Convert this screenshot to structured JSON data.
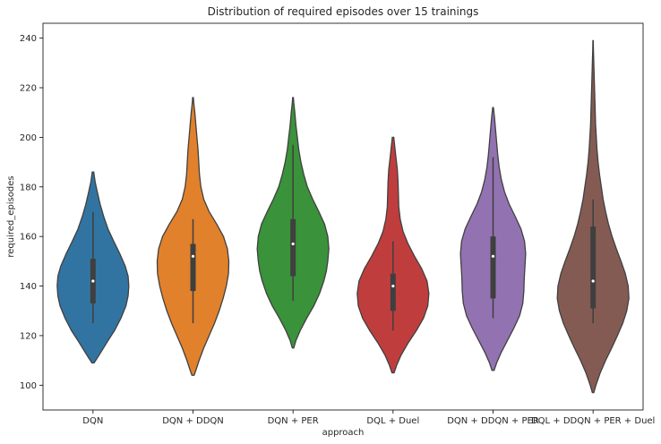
{
  "chart_data": {
    "type": "violin",
    "title": "Distribution of required episodes over 15 trainings",
    "xlabel": "approach",
    "ylabel": "required_episodes",
    "ylim": [
      90,
      246
    ],
    "yticks": [
      100,
      120,
      140,
      160,
      180,
      200,
      220,
      240
    ],
    "grid": false,
    "categories": [
      "DQN",
      "DQN + DDQN",
      "DQN + PER",
      "DQL + Duel",
      "DQN + DDQN + PER",
      "DQL + DDQN + PER + Duel"
    ],
    "series": [
      {
        "category": "DQN",
        "color": "#3274a1",
        "min": 125,
        "q1": 133,
        "median": 142,
        "q3": 151,
        "max": 170,
        "kde_min": 109,
        "kde_max": 186,
        "density": [
          [
            109,
            0.03
          ],
          [
            111,
            0.12
          ],
          [
            114,
            0.25
          ],
          [
            118,
            0.42
          ],
          [
            122,
            0.6
          ],
          [
            127,
            0.78
          ],
          [
            132,
            0.92
          ],
          [
            136,
            0.98
          ],
          [
            140,
            1.0
          ],
          [
            144,
            0.98
          ],
          [
            148,
            0.9
          ],
          [
            153,
            0.75
          ],
          [
            158,
            0.58
          ],
          [
            163,
            0.42
          ],
          [
            168,
            0.3
          ],
          [
            173,
            0.2
          ],
          [
            178,
            0.12
          ],
          [
            182,
            0.06
          ],
          [
            186,
            0.02
          ]
        ]
      },
      {
        "category": "DQN + DDQN",
        "color": "#e1812c",
        "min": 125,
        "q1": 138,
        "median": 152,
        "q3": 157,
        "max": 167,
        "kde_min": 104,
        "kde_max": 216,
        "density": [
          [
            104,
            0.03
          ],
          [
            106,
            0.08
          ],
          [
            110,
            0.17
          ],
          [
            115,
            0.3
          ],
          [
            120,
            0.45
          ],
          [
            125,
            0.6
          ],
          [
            130,
            0.73
          ],
          [
            135,
            0.84
          ],
          [
            140,
            0.93
          ],
          [
            145,
            0.99
          ],
          [
            150,
            1.0
          ],
          [
            155,
            0.96
          ],
          [
            160,
            0.85
          ],
          [
            165,
            0.66
          ],
          [
            170,
            0.45
          ],
          [
            175,
            0.3
          ],
          [
            180,
            0.22
          ],
          [
            185,
            0.18
          ],
          [
            190,
            0.16
          ],
          [
            195,
            0.14
          ],
          [
            200,
            0.11
          ],
          [
            205,
            0.08
          ],
          [
            210,
            0.05
          ],
          [
            214,
            0.02
          ],
          [
            216,
            0.01
          ]
        ]
      },
      {
        "category": "DQN + PER",
        "color": "#3a923a",
        "min": 134,
        "q1": 144,
        "median": 157,
        "q3": 167,
        "max": 197,
        "kde_min": 115,
        "kde_max": 216,
        "density": [
          [
            115,
            0.02
          ],
          [
            118,
            0.08
          ],
          [
            122,
            0.2
          ],
          [
            127,
            0.38
          ],
          [
            132,
            0.58
          ],
          [
            137,
            0.74
          ],
          [
            142,
            0.86
          ],
          [
            146,
            0.93
          ],
          [
            150,
            0.97
          ],
          [
            155,
            1.0
          ],
          [
            160,
            0.97
          ],
          [
            165,
            0.88
          ],
          [
            170,
            0.72
          ],
          [
            175,
            0.55
          ],
          [
            180,
            0.4
          ],
          [
            185,
            0.3
          ],
          [
            190,
            0.22
          ],
          [
            195,
            0.16
          ],
          [
            200,
            0.12
          ],
          [
            205,
            0.08
          ],
          [
            210,
            0.05
          ],
          [
            214,
            0.02
          ],
          [
            216,
            0.01
          ]
        ]
      },
      {
        "category": "DQL + Duel",
        "color": "#c03d3e",
        "min": 122,
        "q1": 130,
        "median": 140,
        "q3": 145,
        "max": 158,
        "kde_min": 105,
        "kde_max": 200,
        "density": [
          [
            105,
            0.03
          ],
          [
            108,
            0.1
          ],
          [
            112,
            0.22
          ],
          [
            117,
            0.42
          ],
          [
            122,
            0.65
          ],
          [
            127,
            0.85
          ],
          [
            132,
            0.97
          ],
          [
            137,
            1.0
          ],
          [
            142,
            0.95
          ],
          [
            147,
            0.8
          ],
          [
            152,
            0.6
          ],
          [
            157,
            0.42
          ],
          [
            162,
            0.28
          ],
          [
            167,
            0.2
          ],
          [
            172,
            0.16
          ],
          [
            177,
            0.15
          ],
          [
            182,
            0.14
          ],
          [
            187,
            0.12
          ],
          [
            192,
            0.08
          ],
          [
            196,
            0.05
          ],
          [
            200,
            0.02
          ]
        ]
      },
      {
        "category": "DQN + DDQN + PER",
        "color": "#9372b2",
        "min": 127,
        "q1": 135,
        "median": 152,
        "q3": 160,
        "max": 192,
        "kde_min": 106,
        "kde_max": 212,
        "density": [
          [
            106,
            0.03
          ],
          [
            109,
            0.1
          ],
          [
            113,
            0.22
          ],
          [
            118,
            0.4
          ],
          [
            123,
            0.58
          ],
          [
            128,
            0.74
          ],
          [
            133,
            0.83
          ],
          [
            138,
            0.86
          ],
          [
            143,
            0.87
          ],
          [
            148,
            0.89
          ],
          [
            153,
            0.91
          ],
          [
            158,
            0.88
          ],
          [
            163,
            0.78
          ],
          [
            168,
            0.62
          ],
          [
            173,
            0.45
          ],
          [
            178,
            0.32
          ],
          [
            183,
            0.23
          ],
          [
            188,
            0.17
          ],
          [
            193,
            0.13
          ],
          [
            198,
            0.1
          ],
          [
            203,
            0.07
          ],
          [
            208,
            0.04
          ],
          [
            212,
            0.01
          ]
        ]
      },
      {
        "category": "DQL + DDQN + PER + Duel",
        "color": "#845b53",
        "min": 125,
        "q1": 131,
        "median": 142,
        "q3": 164,
        "max": 175,
        "kde_min": 97,
        "kde_max": 239,
        "density": [
          [
            97,
            0.02
          ],
          [
            100,
            0.08
          ],
          [
            105,
            0.2
          ],
          [
            110,
            0.35
          ],
          [
            115,
            0.52
          ],
          [
            120,
            0.68
          ],
          [
            125,
            0.83
          ],
          [
            130,
            0.94
          ],
          [
            135,
            1.0
          ],
          [
            140,
            0.98
          ],
          [
            145,
            0.9
          ],
          [
            150,
            0.78
          ],
          [
            155,
            0.65
          ],
          [
            160,
            0.53
          ],
          [
            165,
            0.43
          ],
          [
            170,
            0.35
          ],
          [
            175,
            0.28
          ],
          [
            180,
            0.23
          ],
          [
            185,
            0.18
          ],
          [
            190,
            0.14
          ],
          [
            195,
            0.11
          ],
          [
            200,
            0.09
          ],
          [
            205,
            0.07
          ],
          [
            210,
            0.06
          ],
          [
            215,
            0.05
          ],
          [
            220,
            0.04
          ],
          [
            225,
            0.03
          ],
          [
            230,
            0.02
          ],
          [
            235,
            0.01
          ],
          [
            239,
            0.005
          ]
        ]
      }
    ]
  }
}
